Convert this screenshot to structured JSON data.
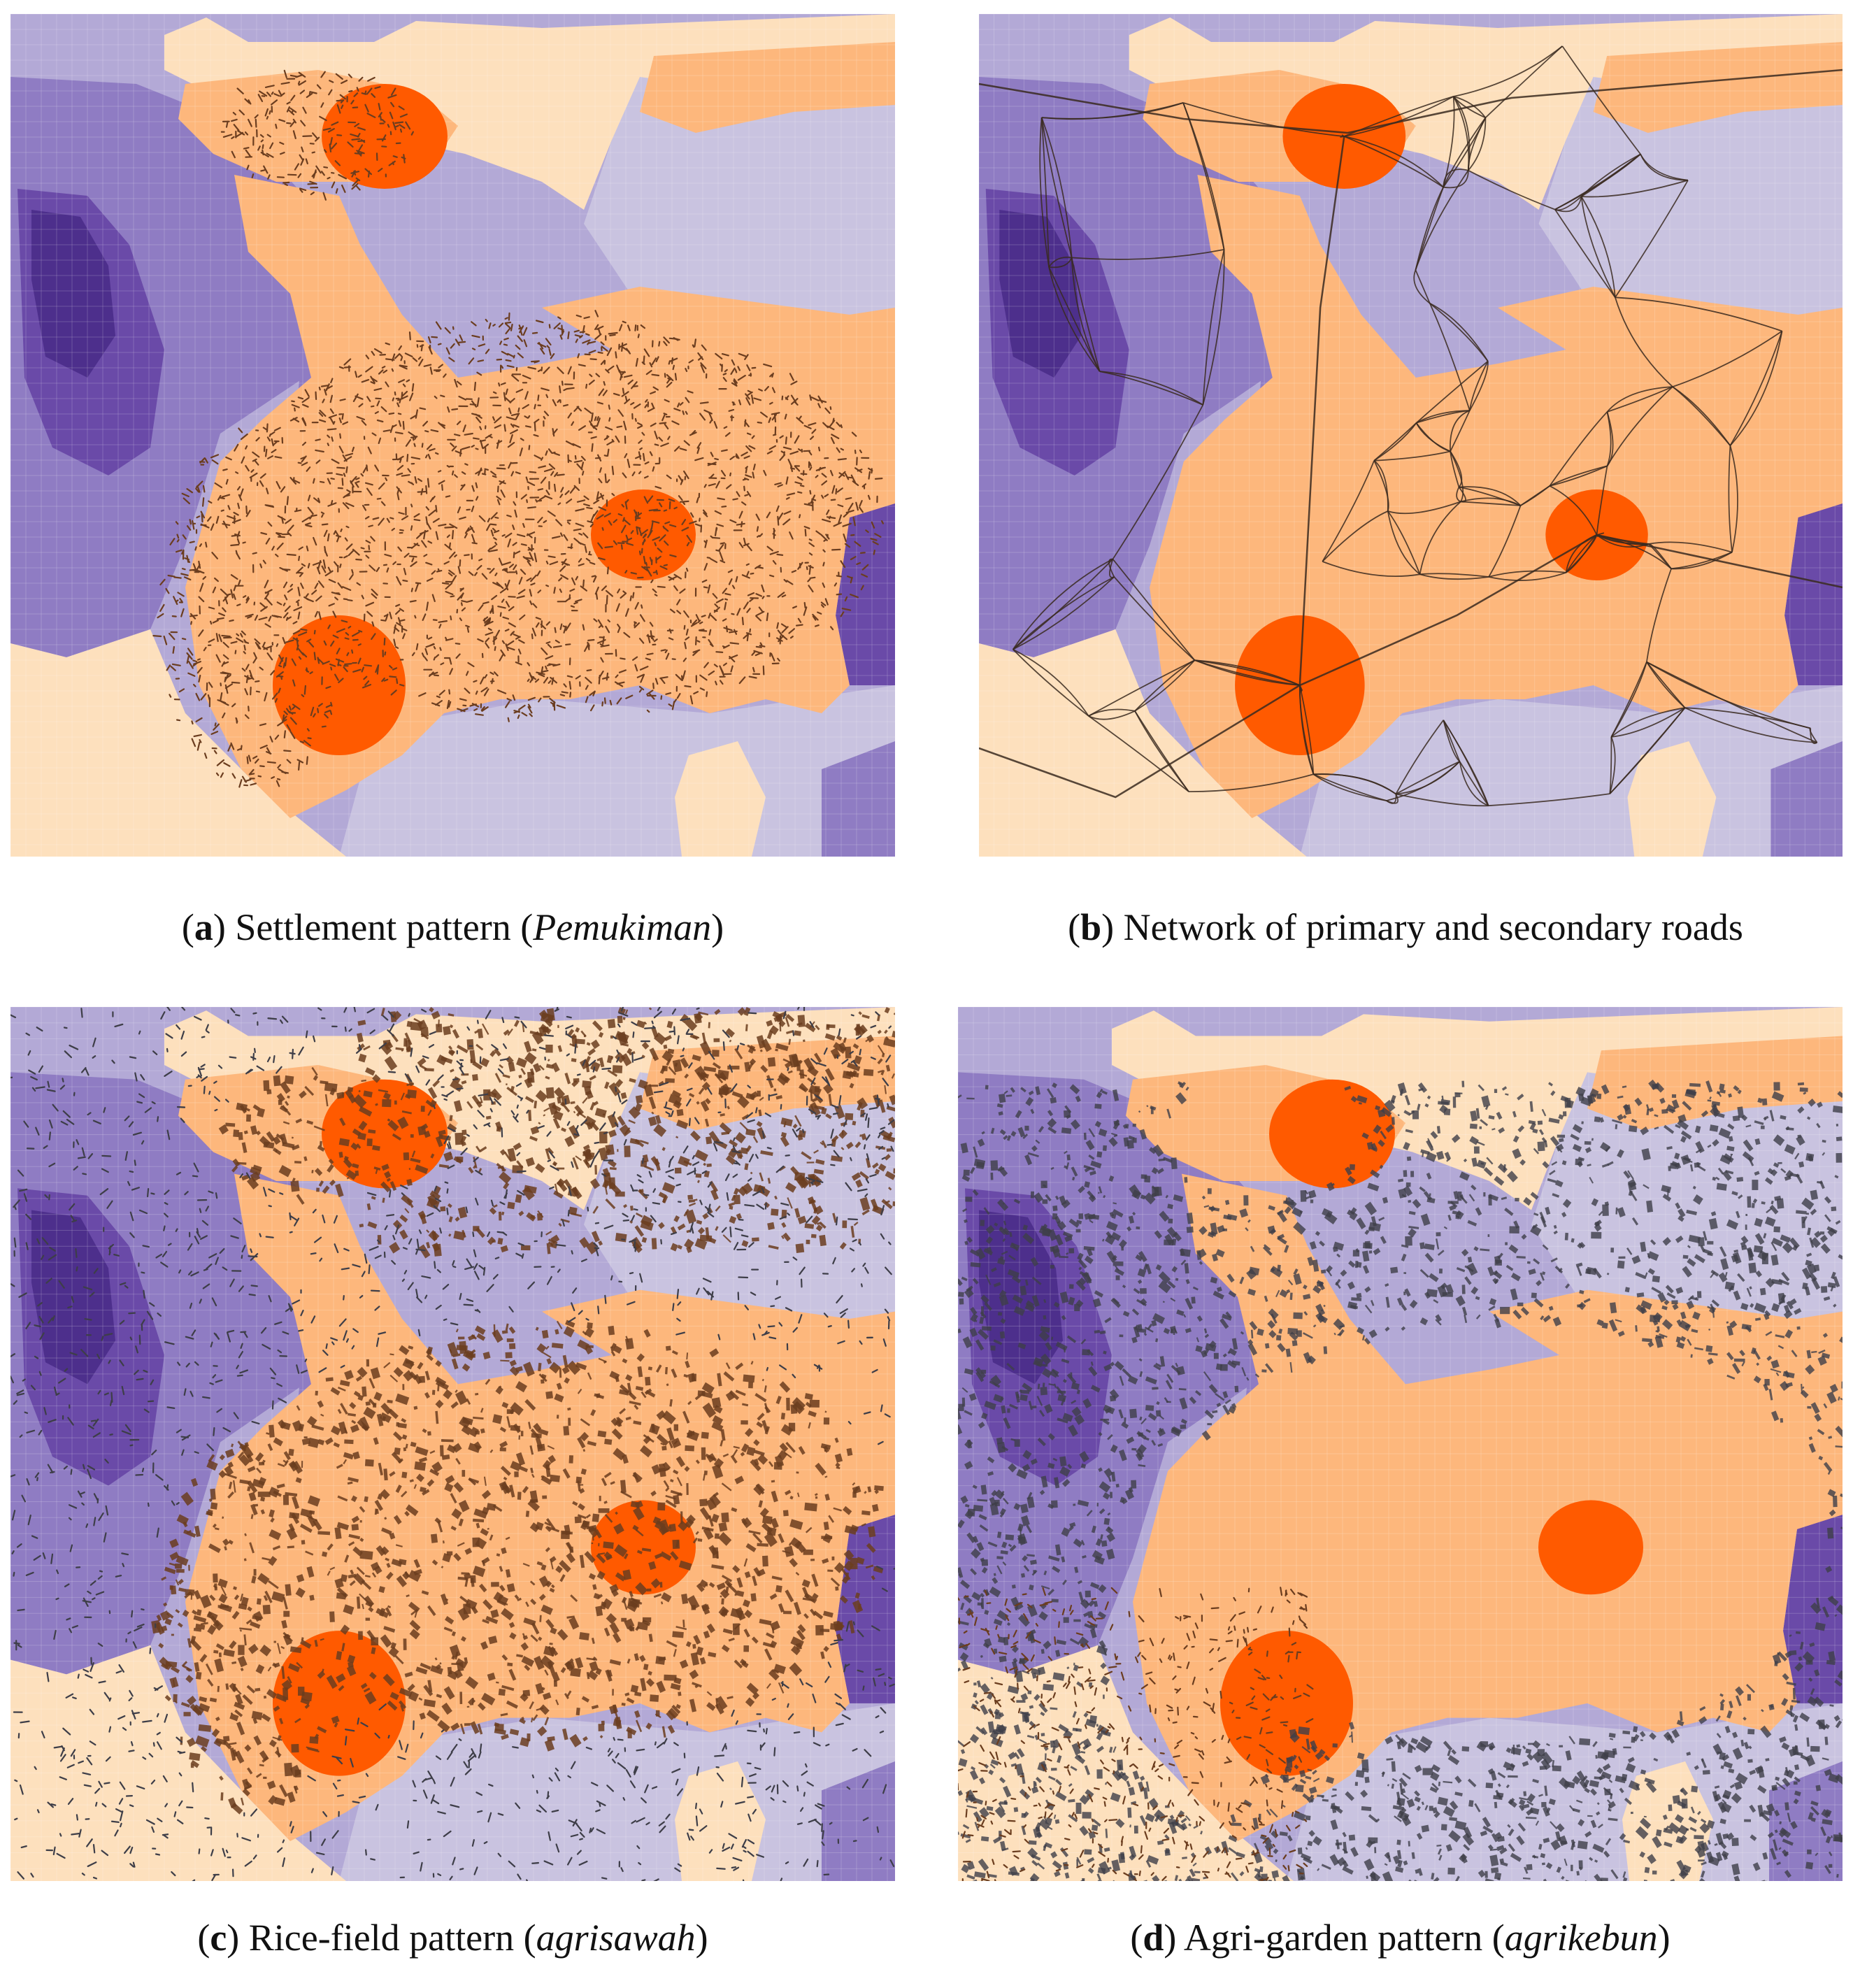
{
  "palette": {
    "light_lavender": "#c9c3e0",
    "lavender": "#b3a9d6",
    "mid_purple": "#8f7cc3",
    "deep_purple": "#6a4aa8",
    "darkest_purple": "#4d2f8c",
    "light_peach": "#fde0bd",
    "peach": "#fdb77c",
    "hotspot_orange": "#ff5a00",
    "overlay_brown": "#6b3d1f",
    "overlay_gray": "#3e3e48",
    "road_line": "#3a2a20"
  },
  "panels": [
    {
      "id": "a",
      "overlay": "settlement",
      "caption": {
        "letter": "a",
        "text": " Settlement pattern (",
        "italic": "Pemukiman",
        "end": ")"
      }
    },
    {
      "id": "b",
      "overlay": "roads",
      "caption": {
        "letter": "b",
        "text": " Network of primary and secondary roads",
        "italic": "",
        "end": ""
      }
    },
    {
      "id": "c",
      "overlay": "rice-field",
      "caption": {
        "letter": "c",
        "text": " Rice-field pattern (",
        "italic": "agrisawah",
        "end": ")"
      }
    },
    {
      "id": "d",
      "overlay": "agri-garden",
      "caption": {
        "letter": "d",
        "text": " Agri-garden pattern (",
        "italic": "agrikebun",
        "end": ")"
      }
    }
  ]
}
